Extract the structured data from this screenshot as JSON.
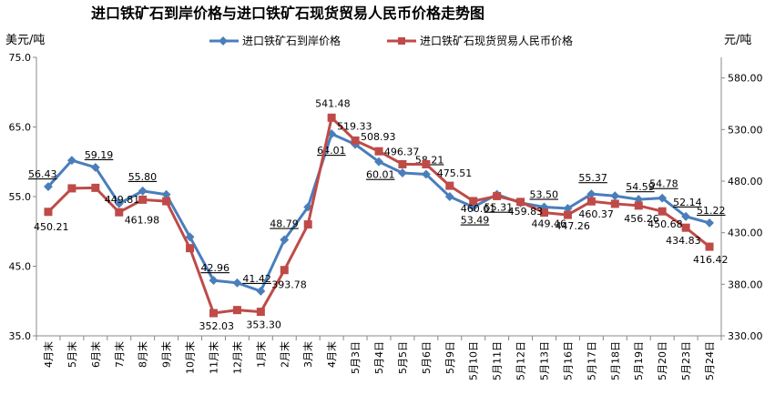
{
  "chart_data": {
    "type": "line",
    "title": "进口铁矿石到岸价格与进口铁矿石现货贸易人民币价格走势图",
    "y_left_unit": "美元/吨",
    "y_right_unit": "元/吨",
    "y_left_ticks": [
      "35.0",
      "45.0",
      "55.0",
      "65.0",
      "75.0"
    ],
    "y_right_ticks": [
      "330.00",
      "380.00",
      "430.00",
      "480.00",
      "530.00",
      "580.00"
    ],
    "y_left_range": [
      35,
      75
    ],
    "y_right_range": [
      330,
      600
    ],
    "legend_position": "top",
    "categories": [
      "4月末",
      "5月末",
      "6月末",
      "7月末",
      "8月末",
      "9月末",
      "10月末",
      "11月末",
      "12月末",
      "1月末",
      "2月末",
      "3月末",
      "4月末",
      "5月3日",
      "5月4日",
      "5月5日",
      "5月6日",
      "5月9日",
      "5月10日",
      "5月11日",
      "5月12日",
      "5月13日",
      "5月16日",
      "5月17日",
      "5月18日",
      "5月19日",
      "5月20日",
      "5月23日",
      "5月24日"
    ],
    "series": [
      {
        "name": "进口铁矿石到岸价格",
        "axis": "left",
        "color": "#4a7ebb",
        "marker": "diamond",
        "values": [
          56.43,
          60.2,
          59.19,
          54.0,
          55.8,
          55.3,
          49.2,
          42.96,
          42.6,
          41.42,
          48.79,
          53.5,
          64.01,
          62.5,
          60.01,
          58.4,
          58.21,
          55.0,
          53.49,
          55.31,
          54.1,
          53.5,
          53.3,
          55.37,
          55.1,
          54.59,
          54.78,
          52.14,
          51.22
        ],
        "labels": {
          "0": "56.43",
          "2": "59.19",
          "4": "55.80",
          "7": "42.96",
          "9": "41.42",
          "10": "48.79",
          "12": "64.01",
          "14": "60.01",
          "16": "58.21",
          "18": "53.49",
          "19": "55.31",
          "21": "53.50",
          "23": "55.37",
          "25": "54.59",
          "26": "54.78",
          "27": "52.14",
          "28": "51.22"
        }
      },
      {
        "name": "进口铁矿石现货贸易人民币价格",
        "axis": "right",
        "color": "#be4b48",
        "marker": "square",
        "values": [
          450.21,
          473.0,
          473.5,
          449.81,
          461.98,
          460.5,
          415.0,
          352.03,
          355.0,
          353.3,
          393.78,
          438.0,
          541.48,
          519.33,
          508.93,
          496.37,
          496.37,
          475.51,
          460.61,
          465.5,
          459.83,
          449.46,
          447.26,
          460.37,
          458.0,
          456.26,
          450.68,
          434.83,
          416.42
        ],
        "labels": {
          "0": "450.21",
          "3": "449.81",
          "4": "461.98",
          "7": "352.03",
          "9": "353.30",
          "10": "393.78",
          "12": "541.48",
          "13": "519.33",
          "14": "508.93",
          "15": "496.37",
          "17": "475.51",
          "18": "460.61",
          "20": "459.83",
          "21": "449.46",
          "22": "447.26",
          "23": "460.37",
          "25": "456.26",
          "26": "450.68",
          "27": "434.83",
          "28": "416.42"
        }
      }
    ]
  }
}
